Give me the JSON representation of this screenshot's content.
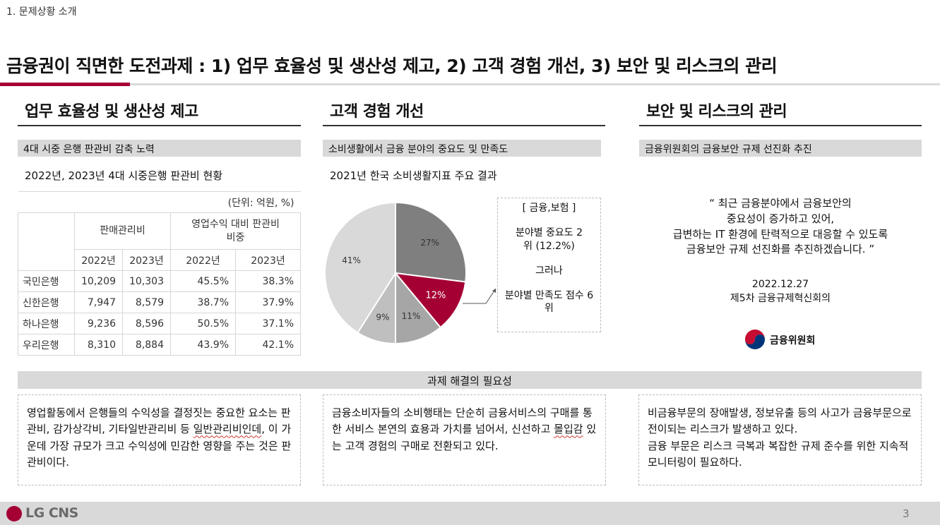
{
  "header": {
    "section_label": "1. 문제상황 소개",
    "title": "금융권이 직면한 도전과제 : 1) 업무 효율성 및 생산성 제고, 2) 고객 경험 개선, 3) 보안 및 리스크의 관리"
  },
  "col1": {
    "title": "업무 효율성 및 생산성 제고",
    "bar": "4대 시중 은행 판관비 감축 노력",
    "subtitle": "2022년, 2023년 4대 시중은행 판관비 현황",
    "table": {
      "unit": "(단위: 억원, %)",
      "group1": "판매관리비",
      "group2": "영업수익 대비 판관비 비중",
      "years": [
        "2022년",
        "2023년",
        "2022년",
        "2023년"
      ],
      "rows": [
        {
          "bank": "국민은행",
          "sga2022": "10,209",
          "sga2023": "10,303",
          "ratio2022": "45.5%",
          "ratio2023": "38.3%"
        },
        {
          "bank": "신한은행",
          "sga2022": "7,947",
          "sga2023": "8,579",
          "ratio2022": "38.7%",
          "ratio2023": "37.9%"
        },
        {
          "bank": "하나은행",
          "sga2022": "9,236",
          "sga2023": "8,596",
          "ratio2022": "50.5%",
          "ratio2023": "37.1%"
        },
        {
          "bank": "우리은행",
          "sga2022": "8,310",
          "sga2023": "8,884",
          "ratio2022": "43.9%",
          "ratio2023": "42.1%"
        }
      ]
    }
  },
  "col2": {
    "title": "고객 경험 개선",
    "bar": "소비생활에서 금융 분야의 중요도 및 만족도",
    "subtitle": "2021년 한국 소비생활지표 주요 결과",
    "callout": {
      "category": "[ 금융,보험 ]",
      "importance": "분야별 중요도 2위 (12.2%)",
      "however": "그러나",
      "satisfaction": "분야별 만족도 점수 6위"
    }
  },
  "chart_data": {
    "type": "pie",
    "slices": [
      {
        "label": "27%",
        "value": 27,
        "color": "#7f7f7f"
      },
      {
        "label": "12%",
        "value": 12,
        "color": "#a50034"
      },
      {
        "label": "11%",
        "value": 11,
        "color": "#a6a6a6"
      },
      {
        "label": "9%",
        "value": 9,
        "color": "#bfbfbf"
      },
      {
        "label": "41%",
        "value": 41,
        "color": "#d9d9d9"
      }
    ],
    "start_angle_deg": 0,
    "direction": "clockwise"
  },
  "col3": {
    "title": "보안 및 리스크의 관리",
    "bar": "금융위원회의 금융보안 규제 선진화 추진",
    "quote_lines": [
      "“ 최근 금융분야에서 금융보안의",
      "중요성이 증가하고 있어,",
      "급변하는 IT 환경에 탄력적으로 대응할 수 있도록",
      "금융보안 규제 선진화를 추진하겠습니다. ”"
    ],
    "date": "2022.12.27",
    "meeting": "제5차 금융규제혁신회의",
    "org": "금융위원회"
  },
  "need": {
    "bar": "과제 해결의 필요성",
    "box1": {
      "before": "영업활동에서 은행들의 수익성을 결정짓는 중요한 요소는 판관비, 감가상각비, 기타일반관리비 등 ",
      "marked": "일반관리비인데",
      "after": ", 이 가운데 가장 규모가 크고 수익성에 민감한 영향을 주는 것은 판관비이다."
    },
    "box2": {
      "before": "금융소비자들의 소비행태는 단순히 금융서비스의 구매를 통한 서비스 본연의 효용과 가치를 넘어서, 신선하고 ",
      "marked": "몰입감",
      "after": " 있는 고객 경험의 구매로 전환되고 있다."
    },
    "box3": {
      "line1": "비금융부문의 장애발생, 정보유출 등의 사고가 금융부문으로 전이되는 리스크가 발생하고 있다.",
      "line2": "금융 부문은 리스크 극복과 복잡한 규제 준수를 위한 지속적 모니터링이 필요하다."
    }
  },
  "footer": {
    "brand": "LG CNS",
    "page": "3"
  }
}
